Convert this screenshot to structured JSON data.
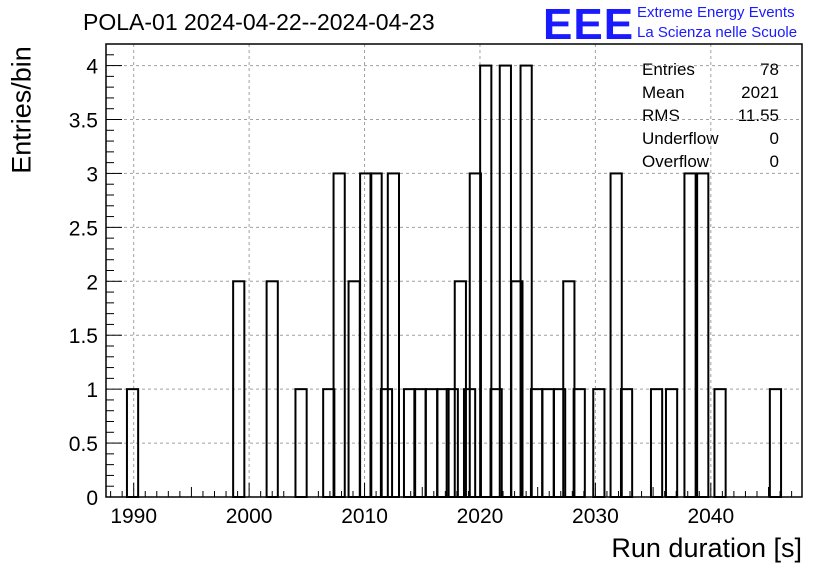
{
  "title": "POLA-01 2024-04-22--2024-04-23",
  "logo": {
    "mark": "EEE",
    "line1": "Extreme Energy Events",
    "line2": "La Scienza nelle Scuole",
    "color": "#1a1aff"
  },
  "stats": [
    {
      "label": "Entries",
      "value": "78"
    },
    {
      "label": "Mean",
      "value": "2021"
    },
    {
      "label": "RMS",
      "value": "11.55"
    },
    {
      "label": "Underflow",
      "value": "0"
    },
    {
      "label": "Overflow",
      "value": "0"
    }
  ],
  "chart_data": {
    "type": "bar",
    "xlabel": "Run duration [s]",
    "ylabel": "Entries/bin",
    "xlim": [
      1987.6,
      2047.9
    ],
    "ylim": [
      0,
      4.2
    ],
    "bin_width": 0.97,
    "grid": true,
    "x_ticks": [
      1990,
      2000,
      2010,
      2020,
      2030,
      2040
    ],
    "y_ticks": [
      0,
      0.5,
      1,
      1.5,
      2,
      2.5,
      3,
      3.5,
      4
    ],
    "y_tick_labels": [
      "0",
      "0.5",
      "1",
      "1.5",
      "2",
      "2.5",
      "3",
      "3.5",
      "4"
    ],
    "bins": [
      {
        "x": 1989.9,
        "y": 1
      },
      {
        "x": 1999.1,
        "y": 2
      },
      {
        "x": 2002.0,
        "y": 2
      },
      {
        "x": 2004.5,
        "y": 1
      },
      {
        "x": 2006.9,
        "y": 1
      },
      {
        "x": 2007.8,
        "y": 3
      },
      {
        "x": 2009.1,
        "y": 2
      },
      {
        "x": 2010.1,
        "y": 3
      },
      {
        "x": 2011.0,
        "y": 3
      },
      {
        "x": 2011.9,
        "y": 1
      },
      {
        "x": 2012.5,
        "y": 3
      },
      {
        "x": 2013.9,
        "y": 1
      },
      {
        "x": 2014.8,
        "y": 1
      },
      {
        "x": 2015.8,
        "y": 1
      },
      {
        "x": 2016.8,
        "y": 1
      },
      {
        "x": 2017.6,
        "y": 1
      },
      {
        "x": 2018.3,
        "y": 2
      },
      {
        "x": 2019.1,
        "y": 1
      },
      {
        "x": 2019.6,
        "y": 3
      },
      {
        "x": 2020.5,
        "y": 4
      },
      {
        "x": 2021.4,
        "y": 1
      },
      {
        "x": 2022.2,
        "y": 4
      },
      {
        "x": 2023.2,
        "y": 2
      },
      {
        "x": 2024.0,
        "y": 4
      },
      {
        "x": 2024.9,
        "y": 1
      },
      {
        "x": 2025.9,
        "y": 1
      },
      {
        "x": 2026.9,
        "y": 1
      },
      {
        "x": 2027.7,
        "y": 2
      },
      {
        "x": 2028.6,
        "y": 1
      },
      {
        "x": 2030.3,
        "y": 1
      },
      {
        "x": 2031.8,
        "y": 3
      },
      {
        "x": 2032.7,
        "y": 1
      },
      {
        "x": 2035.3,
        "y": 1
      },
      {
        "x": 2036.6,
        "y": 1
      },
      {
        "x": 2038.2,
        "y": 3
      },
      {
        "x": 2039.3,
        "y": 3
      },
      {
        "x": 2040.8,
        "y": 1
      },
      {
        "x": 2045.6,
        "y": 1
      }
    ]
  }
}
